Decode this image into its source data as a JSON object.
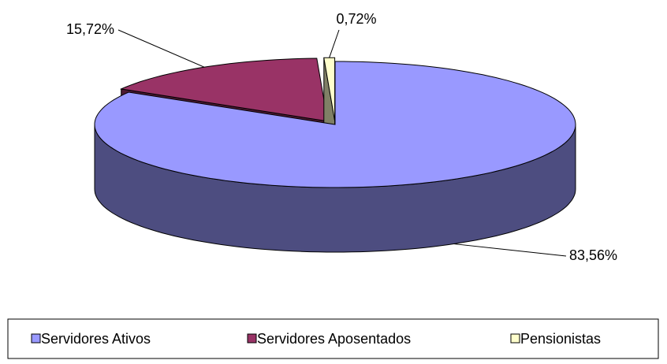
{
  "chart_data": {
    "type": "pie",
    "categories": [
      "Servidores Ativos",
      "Servidores Aposentados",
      "Pensionistas"
    ],
    "values": [
      83.56,
      15.72,
      0.72
    ],
    "value_labels": [
      "83,56%",
      "15,72%",
      "0,72%"
    ],
    "colors": [
      "#9999ff",
      "#993366",
      "#ffffcc"
    ],
    "legend": "bottom"
  }
}
